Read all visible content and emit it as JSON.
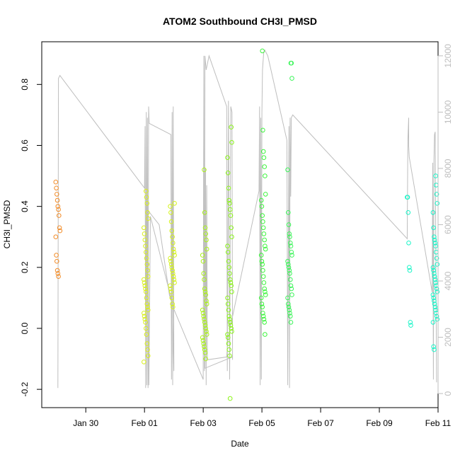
{
  "chart_data": {
    "type": "scatter",
    "title": "ATOM2 Southbound CH3I_PMSD",
    "xlabel": "Date",
    "ylabel": "CH3I_PMSD",
    "x_ticks": [
      "Jan 30",
      "Feb 01",
      "Feb 03",
      "Feb 05",
      "Feb 07",
      "Feb 09",
      "Feb 11"
    ],
    "x_range_days": [
      -2.5,
      11.0
    ],
    "ylim": [
      -0.26,
      0.94
    ],
    "y_ticks": [
      -0.2,
      0.0,
      0.2,
      0.4,
      0.6,
      0.8
    ],
    "y2_ticks": [
      0,
      2000,
      4000,
      6000,
      8000,
      10000,
      12000
    ],
    "y2lim": [
      -500,
      12500
    ],
    "grid": false,
    "colors": {
      "axis": "#000000",
      "secondary_axis": "#bebebe",
      "altitude_line": "#bebebe",
      "clusters": [
        "#f28c28",
        "#d9f01a",
        "#d4f21a",
        "#aaf21a",
        "#8cf51a",
        "#3cf53c",
        "#3cf55a",
        "#1af5c8"
      ]
    },
    "clusters": [
      {
        "day": -1.95,
        "color": "#f28c28",
        "values": [
          0.48,
          0.46,
          0.44,
          0.42,
          0.4,
          0.39,
          0.37,
          0.33,
          0.32,
          0.3,
          0.24,
          0.22,
          0.19,
          0.18,
          0.17
        ]
      },
      {
        "day": 1.05,
        "color": "#d9f01a",
        "values": [
          0.45,
          0.43,
          0.41,
          0.38,
          0.36,
          0.33,
          0.31,
          0.29,
          0.27,
          0.25,
          0.23,
          0.21,
          0.19,
          0.17,
          0.16,
          0.15,
          0.14,
          0.13,
          0.12,
          0.1,
          0.08,
          0.07,
          0.06,
          0.05,
          0.04,
          0.03,
          0.02,
          0.0,
          -0.02,
          -0.05,
          -0.07,
          -0.09,
          -0.11
        ]
      },
      {
        "day": 1.95,
        "color": "#d4f21a",
        "values": [
          0.41,
          0.4,
          0.38,
          0.35,
          0.32,
          0.3,
          0.28,
          0.26,
          0.25,
          0.24,
          0.23,
          0.22,
          0.21,
          0.2,
          0.19,
          0.18,
          0.17,
          0.16,
          0.15,
          0.14,
          0.13,
          0.12,
          0.1,
          0.08,
          0.07
        ]
      },
      {
        "day": 3.05,
        "color": "#aaf21a",
        "values": [
          0.52,
          0.38,
          0.33,
          0.31,
          0.29,
          0.26,
          0.24,
          0.22,
          0.18,
          0.16,
          0.13,
          0.12,
          0.11,
          0.09,
          0.08,
          0.06,
          0.05,
          0.04,
          0.03,
          0.02,
          0.01,
          0.0,
          -0.01,
          -0.02,
          -0.03,
          -0.04,
          -0.05,
          -0.06,
          -0.07,
          -0.08,
          -0.1
        ]
      },
      {
        "day": 3.9,
        "color": "#8cf51a",
        "values": [
          0.66,
          0.61,
          0.56,
          0.51,
          0.46,
          0.42,
          0.41,
          0.39,
          0.37,
          0.33,
          0.3,
          0.27,
          0.25,
          0.22,
          0.2,
          0.18,
          0.16,
          0.15,
          0.14,
          0.12,
          0.1,
          0.08,
          0.06,
          0.04,
          0.03,
          0.02,
          0.01,
          0.0,
          -0.01,
          -0.02,
          -0.03,
          -0.05,
          -0.07,
          -0.09,
          -0.23
        ]
      },
      {
        "day": 5.05,
        "color": "#3cf53c",
        "values": [
          0.91,
          0.65,
          0.58,
          0.56,
          0.53,
          0.5,
          0.44,
          0.42,
          0.4,
          0.37,
          0.35,
          0.33,
          0.31,
          0.29,
          0.27,
          0.26,
          0.24,
          0.22,
          0.21,
          0.19,
          0.17,
          0.15,
          0.13,
          0.12,
          0.11,
          0.1,
          0.08,
          0.07,
          0.05,
          0.04,
          0.03,
          0.02,
          -0.02
        ]
      },
      {
        "day": 5.95,
        "color": "#3cf55a",
        "values": [
          0.87,
          0.87,
          0.82,
          0.52,
          0.38,
          0.34,
          0.31,
          0.3,
          0.28,
          0.27,
          0.25,
          0.24,
          0.22,
          0.21,
          0.2,
          0.19,
          0.18,
          0.16,
          0.14,
          0.13,
          0.11,
          0.1,
          0.08,
          0.07,
          0.06,
          0.05,
          0.04,
          0.02
        ]
      },
      {
        "day": 10.0,
        "color": "#1af5c8",
        "values": [
          0.43,
          0.43,
          0.38,
          0.28,
          0.2,
          0.19,
          0.02,
          0.01
        ]
      },
      {
        "day": 10.9,
        "color": "#1af5c8",
        "values": [
          0.5,
          0.47,
          0.44,
          0.41,
          0.38,
          0.33,
          0.3,
          0.29,
          0.28,
          0.27,
          0.25,
          0.23,
          0.21,
          0.2,
          0.19,
          0.18,
          0.17,
          0.16,
          0.15,
          0.14,
          0.13,
          0.12,
          0.11,
          0.1,
          0.09,
          0.08,
          0.07,
          0.06,
          0.05,
          0.04,
          0.03,
          0.02,
          -0.06,
          -0.07
        ]
      }
    ],
    "altitude_path": [
      [
        -1.95,
        200
      ],
      [
        -1.93,
        11200
      ],
      [
        -1.88,
        11300
      ],
      [
        1.0,
        7300
      ],
      [
        1.02,
        9500
      ],
      [
        1.04,
        200
      ],
      [
        1.06,
        10000
      ],
      [
        1.08,
        300
      ],
      [
        1.1,
        9800
      ],
      [
        1.12,
        200
      ],
      [
        1.14,
        10200
      ],
      [
        1.16,
        9600
      ],
      [
        1.9,
        9200
      ],
      [
        1.92,
        500
      ],
      [
        1.94,
        10000
      ],
      [
        1.96,
        300
      ],
      [
        1.98,
        10200
      ],
      [
        2.0,
        800
      ],
      [
        1.95,
        3200
      ],
      [
        1.2,
        6300
      ],
      [
        1.15,
        300
      ],
      [
        1.12,
        6500
      ],
      [
        1.5,
        6000
      ],
      [
        1.85,
        3500
      ],
      [
        2.0,
        3000
      ],
      [
        3.0,
        500
      ],
      [
        3.02,
        12000
      ],
      [
        3.04,
        800
      ],
      [
        3.06,
        12000
      ],
      [
        3.1,
        11500
      ],
      [
        3.2,
        12000
      ],
      [
        3.8,
        10200
      ],
      [
        3.82,
        800
      ],
      [
        3.86,
        10400
      ],
      [
        3.9,
        500
      ],
      [
        3.94,
        10200
      ],
      [
        3.98,
        10000
      ],
      [
        4.0,
        1200
      ],
      [
        4.0,
        1300
      ],
      [
        3.06,
        900
      ],
      [
        3.08,
        8000
      ],
      [
        3.1,
        300
      ],
      [
        3.12,
        7400
      ],
      [
        3.14,
        1200
      ],
      [
        3.8,
        1300
      ],
      [
        3.85,
        2000
      ],
      [
        4.9,
        7200
      ],
      [
        4.92,
        10200
      ],
      [
        4.94,
        300
      ],
      [
        4.96,
        9800
      ],
      [
        4.98,
        500
      ],
      [
        5.0,
        10000
      ],
      [
        5.02,
        11500
      ],
      [
        5.06,
        12100
      ],
      [
        5.1,
        12200
      ],
      [
        5.2,
        12000
      ],
      [
        5.85,
        9000
      ],
      [
        5.88,
        300
      ],
      [
        5.92,
        9500
      ],
      [
        5.94,
        200
      ],
      [
        5.96,
        9800
      ],
      [
        5.98,
        7000
      ],
      [
        6.0,
        9800
      ],
      [
        6.05,
        9900
      ],
      [
        9.95,
        5500
      ],
      [
        9.97,
        9000
      ],
      [
        10.0,
        9800
      ],
      [
        10.0,
        8800
      ],
      [
        10.02,
        8400
      ],
      [
        10.8,
        3600
      ],
      [
        10.82,
        8200
      ],
      [
        10.84,
        500
      ],
      [
        10.86,
        8300
      ],
      [
        10.88,
        9200
      ],
      [
        10.9,
        9300
      ],
      [
        10.95,
        400
      ]
    ]
  }
}
